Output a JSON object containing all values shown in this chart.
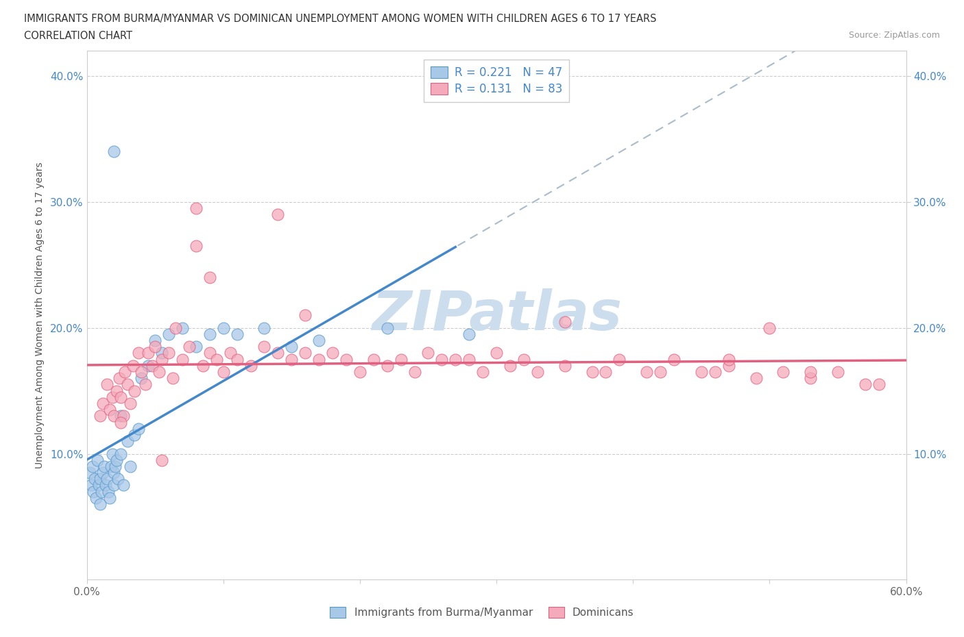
{
  "title_line1": "IMMIGRANTS FROM BURMA/MYANMAR VS DOMINICAN UNEMPLOYMENT AMONG WOMEN WITH CHILDREN AGES 6 TO 17 YEARS",
  "title_line2": "CORRELATION CHART",
  "source_text": "Source: ZipAtlas.com",
  "ylabel": "Unemployment Among Women with Children Ages 6 to 17 years",
  "xlim": [
    0.0,
    0.6
  ],
  "ylim": [
    0.0,
    0.42
  ],
  "R_burma": 0.221,
  "N_burma": 47,
  "R_dominican": 0.131,
  "N_dominican": 83,
  "legend_label_burma": "Immigrants from Burma/Myanmar",
  "legend_label_dominican": "Dominicans",
  "color_burma_fill": "#a8c8e8",
  "color_dominican_fill": "#f4aaba",
  "color_burma_edge": "#5599cc",
  "color_dominican_edge": "#e06080",
  "color_burma_line": "#4488cc",
  "color_dominican_line": "#e06080",
  "color_dashed": "#aabbcc",
  "watermark_color": "#ccdded",
  "burma_x": [
    0.002,
    0.003,
    0.004,
    0.005,
    0.006,
    0.007,
    0.008,
    0.009,
    0.01,
    0.01,
    0.011,
    0.012,
    0.013,
    0.014,
    0.015,
    0.016,
    0.017,
    0.018,
    0.019,
    0.02,
    0.02,
    0.021,
    0.022,
    0.023,
    0.025,
    0.027,
    0.03,
    0.032,
    0.035,
    0.038,
    0.04,
    0.045,
    0.05,
    0.055,
    0.06,
    0.07,
    0.08,
    0.09,
    0.1,
    0.11,
    0.13,
    0.15,
    0.02,
    0.025,
    0.17,
    0.22,
    0.28
  ],
  "burma_y": [
    0.085,
    0.075,
    0.09,
    0.07,
    0.08,
    0.065,
    0.095,
    0.075,
    0.06,
    0.08,
    0.07,
    0.085,
    0.09,
    0.075,
    0.08,
    0.07,
    0.065,
    0.09,
    0.1,
    0.075,
    0.085,
    0.09,
    0.095,
    0.08,
    0.1,
    0.075,
    0.11,
    0.09,
    0.115,
    0.12,
    0.16,
    0.17,
    0.19,
    0.18,
    0.195,
    0.2,
    0.185,
    0.195,
    0.2,
    0.195,
    0.2,
    0.185,
    0.34,
    0.13,
    0.19,
    0.2,
    0.195
  ],
  "dominican_x": [
    0.01,
    0.012,
    0.015,
    0.017,
    0.019,
    0.02,
    0.022,
    0.024,
    0.025,
    0.027,
    0.028,
    0.03,
    0.032,
    0.034,
    0.035,
    0.038,
    0.04,
    0.043,
    0.045,
    0.048,
    0.05,
    0.053,
    0.055,
    0.06,
    0.063,
    0.065,
    0.07,
    0.075,
    0.08,
    0.085,
    0.09,
    0.095,
    0.1,
    0.105,
    0.11,
    0.12,
    0.13,
    0.14,
    0.15,
    0.16,
    0.17,
    0.18,
    0.19,
    0.2,
    0.21,
    0.22,
    0.23,
    0.24,
    0.25,
    0.26,
    0.27,
    0.28,
    0.29,
    0.3,
    0.31,
    0.32,
    0.33,
    0.35,
    0.37,
    0.39,
    0.41,
    0.43,
    0.45,
    0.47,
    0.49,
    0.51,
    0.53,
    0.55,
    0.57,
    0.08,
    0.09,
    0.14,
    0.16,
    0.35,
    0.38,
    0.47,
    0.5,
    0.53,
    0.025,
    0.055,
    0.42,
    0.46,
    0.58
  ],
  "dominican_y": [
    0.13,
    0.14,
    0.155,
    0.135,
    0.145,
    0.13,
    0.15,
    0.16,
    0.145,
    0.13,
    0.165,
    0.155,
    0.14,
    0.17,
    0.15,
    0.18,
    0.165,
    0.155,
    0.18,
    0.17,
    0.185,
    0.165,
    0.175,
    0.18,
    0.16,
    0.2,
    0.175,
    0.185,
    0.295,
    0.17,
    0.18,
    0.175,
    0.165,
    0.18,
    0.175,
    0.17,
    0.185,
    0.18,
    0.175,
    0.18,
    0.175,
    0.18,
    0.175,
    0.165,
    0.175,
    0.17,
    0.175,
    0.165,
    0.18,
    0.175,
    0.175,
    0.175,
    0.165,
    0.18,
    0.17,
    0.175,
    0.165,
    0.17,
    0.165,
    0.175,
    0.165,
    0.175,
    0.165,
    0.17,
    0.16,
    0.165,
    0.16,
    0.165,
    0.155,
    0.265,
    0.24,
    0.29,
    0.21,
    0.205,
    0.165,
    0.175,
    0.2,
    0.165,
    0.125,
    0.095,
    0.165,
    0.165,
    0.155
  ]
}
